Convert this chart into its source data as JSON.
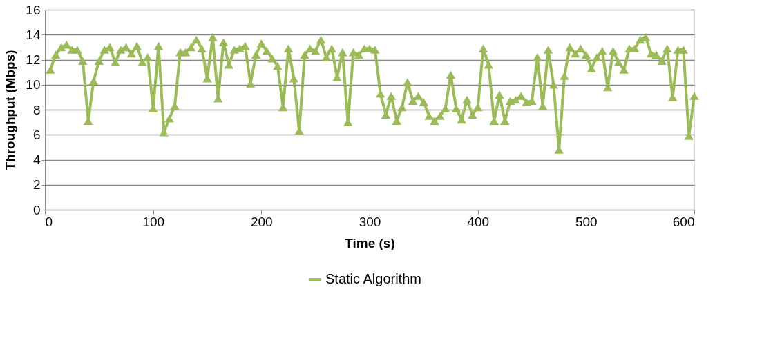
{
  "chart_data": {
    "type": "line",
    "xlabel": "Time (s)",
    "ylabel": "Throughput (Mbps)",
    "x": [
      5,
      10,
      15,
      20,
      25,
      30,
      35,
      40,
      45,
      50,
      55,
      60,
      65,
      70,
      75,
      80,
      85,
      90,
      95,
      100,
      105,
      110,
      115,
      120,
      125,
      130,
      135,
      140,
      145,
      150,
      155,
      160,
      165,
      170,
      175,
      180,
      185,
      190,
      195,
      200,
      205,
      210,
      215,
      220,
      225,
      230,
      235,
      240,
      245,
      250,
      255,
      260,
      265,
      270,
      275,
      280,
      285,
      290,
      295,
      300,
      305,
      310,
      315,
      320,
      325,
      330,
      335,
      340,
      345,
      350,
      355,
      360,
      365,
      370,
      375,
      380,
      385,
      390,
      395,
      400,
      405,
      410,
      415,
      420,
      425,
      430,
      435,
      440,
      445,
      450,
      455,
      460,
      465,
      470,
      475,
      480,
      485,
      490,
      495,
      500,
      505,
      510,
      515,
      520,
      525,
      530,
      535,
      540,
      545,
      550,
      555,
      560,
      565,
      570,
      575,
      580,
      585,
      590,
      595,
      600
    ],
    "series": [
      {
        "name": "Static Algorithm",
        "color": "#9bbb59",
        "values": [
          11.2,
          12.4,
          13.0,
          13.2,
          12.8,
          12.8,
          11.9,
          7.1,
          10.3,
          11.9,
          12.8,
          13.0,
          11.8,
          12.8,
          13.0,
          12.5,
          13.1,
          11.8,
          12.2,
          8.1,
          13.1,
          6.2,
          7.3,
          8.3,
          12.6,
          12.6,
          13.0,
          13.6,
          12.9,
          10.5,
          13.8,
          8.9,
          13.4,
          11.6,
          12.8,
          12.9,
          13.1,
          10.1,
          12.4,
          13.3,
          12.7,
          12.1,
          11.5,
          8.2,
          12.9,
          10.5,
          6.3,
          12.4,
          12.9,
          12.7,
          13.6,
          12.2,
          12.9,
          10.6,
          12.6,
          7.0,
          12.6,
          12.4,
          12.9,
          12.9,
          12.8,
          9.3,
          7.6,
          9.1,
          7.1,
          8.2,
          10.2,
          8.7,
          9.1,
          8.6,
          7.5,
          7.1,
          7.5,
          8.1,
          10.8,
          8.1,
          7.2,
          8.8,
          7.6,
          8.2,
          12.9,
          11.6,
          7.1,
          9.2,
          7.1,
          8.7,
          8.8,
          9.1,
          8.6,
          8.7,
          12.2,
          8.3,
          12.8,
          10.0,
          4.8,
          10.7,
          13.0,
          12.5,
          12.9,
          12.4,
          11.3,
          12.2,
          12.7,
          9.8,
          12.7,
          11.8,
          11.2,
          12.9,
          12.9,
          13.6,
          13.8,
          12.5,
          12.4,
          11.9,
          12.9,
          9.0,
          12.8,
          12.8,
          5.9,
          9.1
        ]
      }
    ],
    "xlim": [
      0,
      600
    ],
    "xticks": [
      0,
      100,
      200,
      300,
      400,
      500,
      600
    ],
    "ylim": [
      0,
      16
    ],
    "yticks": [
      0,
      2,
      4,
      6,
      8,
      10,
      12,
      14,
      16
    ],
    "grid": "y",
    "legend": "bottom",
    "marker": "triangle",
    "line_style": "solid"
  }
}
